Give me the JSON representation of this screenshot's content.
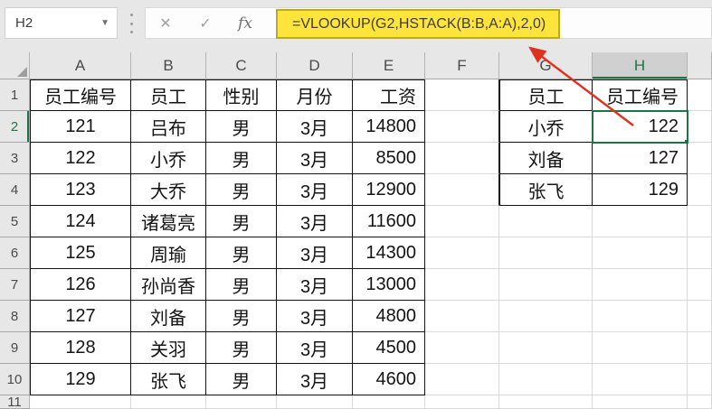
{
  "formula_bar": {
    "name_box_value": "H2",
    "cancel_label": "✕",
    "enter_label": "✓",
    "fx_label": "fx",
    "formula": "=VLOOKUP(G2,HSTACK(B:B,A:A),2,0)"
  },
  "colors": {
    "accent_green": "#217346",
    "arrow_red": "#e0301e",
    "highlight_yellow": "#ffe53b",
    "highlight_border": "#bfa72e"
  },
  "sheet": {
    "selected_cell": "H2",
    "selected_column": "H",
    "selected_row": "2",
    "columns": [
      "A",
      "B",
      "C",
      "D",
      "E",
      "F",
      "G",
      "H"
    ],
    "row_numbers": [
      "1",
      "2",
      "3",
      "4",
      "5",
      "6",
      "7",
      "8",
      "9",
      "10",
      "11"
    ],
    "cells": [
      [
        "员工编号",
        "员工",
        "性别",
        "月份",
        "工资",
        "",
        "员工",
        "员工编号"
      ],
      [
        "121",
        "吕布",
        "男",
        "3月",
        "14800",
        "",
        "小乔",
        "122"
      ],
      [
        "122",
        "小乔",
        "男",
        "3月",
        "8500",
        "",
        "刘备",
        "127"
      ],
      [
        "123",
        "大乔",
        "男",
        "3月",
        "12900",
        "",
        "张飞",
        "129"
      ],
      [
        "124",
        "诸葛亮",
        "男",
        "3月",
        "11600",
        "",
        "",
        ""
      ],
      [
        "125",
        "周瑜",
        "男",
        "3月",
        "14300",
        "",
        "",
        ""
      ],
      [
        "126",
        "孙尚香",
        "男",
        "3月",
        "13000",
        "",
        "",
        ""
      ],
      [
        "127",
        "刘备",
        "男",
        "3月",
        "4800",
        "",
        "",
        ""
      ],
      [
        "128",
        "关羽",
        "男",
        "3月",
        "4500",
        "",
        "",
        ""
      ],
      [
        "129",
        "张飞",
        "男",
        "3月",
        "4600",
        "",
        "",
        ""
      ],
      [
        "",
        "",
        "",
        "",
        "",
        "",
        "",
        ""
      ]
    ]
  }
}
